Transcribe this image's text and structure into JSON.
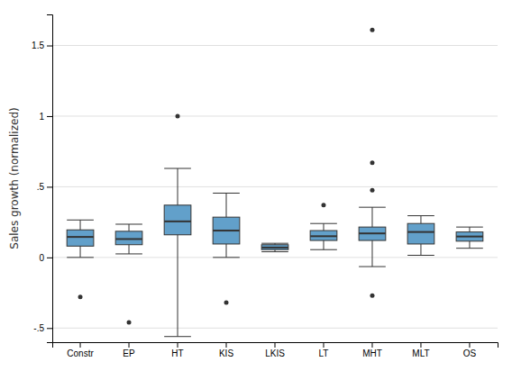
{
  "chart_data": {
    "type": "box",
    "ylabel": "Sales growth (normalized)",
    "categories": [
      "Constr",
      "EP",
      "HT",
      "KIS",
      "LKIS",
      "LT",
      "MHT",
      "MLT",
      "OS"
    ],
    "boxes": [
      {
        "q1": 0.08,
        "median": 0.145,
        "q3": 0.195,
        "whisker_low": 0.0,
        "whisker_high": 0.265,
        "outliers": [
          -0.28
        ]
      },
      {
        "q1": 0.09,
        "median": 0.13,
        "q3": 0.185,
        "whisker_low": 0.025,
        "whisker_high": 0.235,
        "outliers": [
          -0.46
        ]
      },
      {
        "q1": 0.16,
        "median": 0.255,
        "q3": 0.37,
        "whisker_low": -0.56,
        "whisker_high": 0.63,
        "outliers": [
          1.0
        ]
      },
      {
        "q1": 0.095,
        "median": 0.19,
        "q3": 0.285,
        "whisker_low": 0.0,
        "whisker_high": 0.455,
        "outliers": [
          -0.32
        ]
      },
      {
        "q1": 0.055,
        "median": 0.07,
        "q3": 0.09,
        "whisker_low": 0.04,
        "whisker_high": 0.1,
        "outliers": []
      },
      {
        "q1": 0.12,
        "median": 0.15,
        "q3": 0.19,
        "whisker_low": 0.055,
        "whisker_high": 0.24,
        "outliers": [
          0.37
        ]
      },
      {
        "q1": 0.12,
        "median": 0.17,
        "q3": 0.215,
        "whisker_low": -0.065,
        "whisker_high": 0.355,
        "outliers": [
          0.67,
          0.475,
          1.61,
          -0.27
        ]
      },
      {
        "q1": 0.095,
        "median": 0.18,
        "q3": 0.24,
        "whisker_low": 0.015,
        "whisker_high": 0.295,
        "outliers": []
      },
      {
        "q1": 0.115,
        "median": 0.148,
        "q3": 0.18,
        "whisker_low": 0.065,
        "whisker_high": 0.215,
        "outliers": []
      }
    ],
    "ylim": [
      -0.6,
      1.72
    ],
    "yticks": [
      {
        "value": -0.5,
        "label": "-.5"
      },
      0,
      {
        "value": 0.5,
        "label": ".5"
      },
      1,
      1.5
    ],
    "grid": true
  }
}
